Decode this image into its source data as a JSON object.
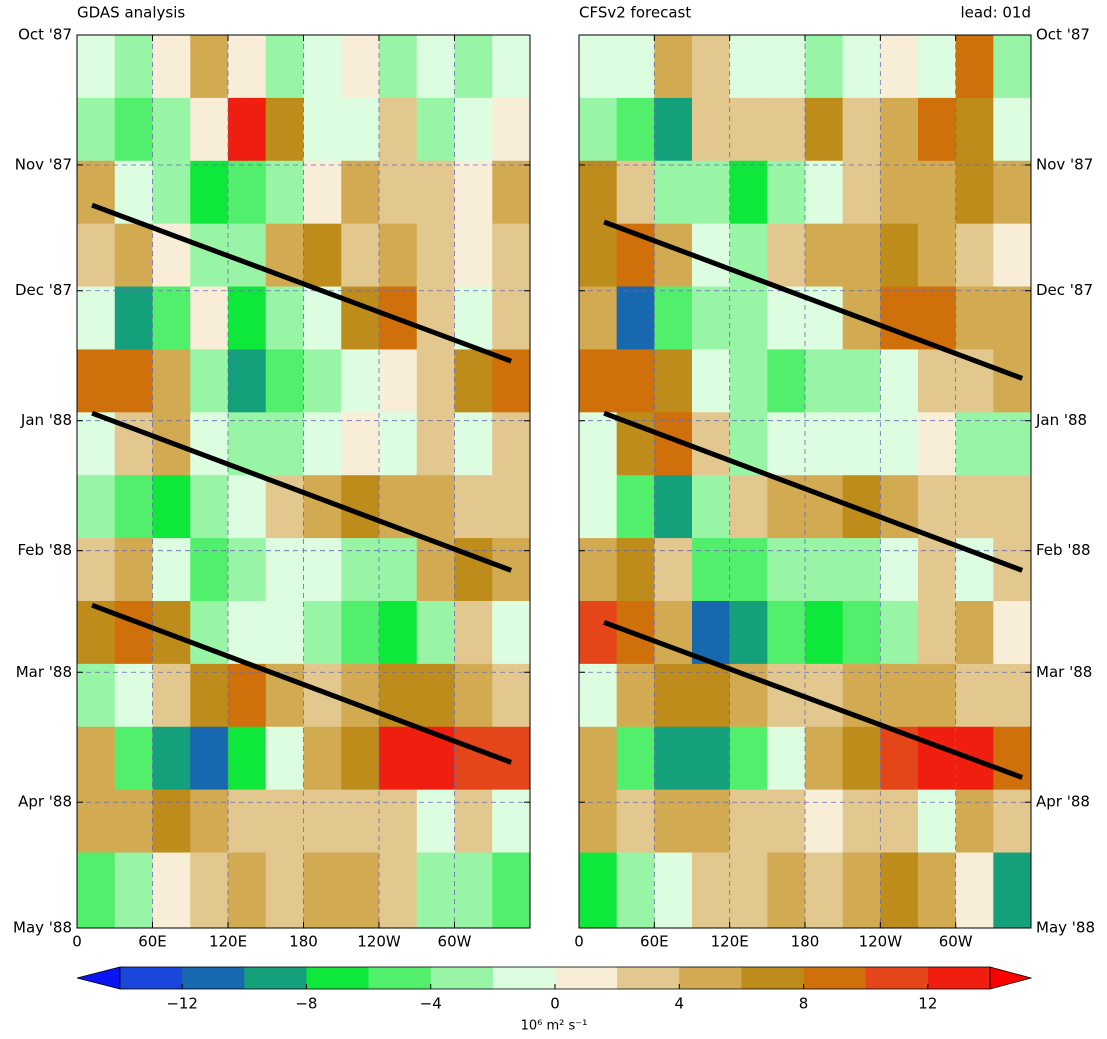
{
  "chart_data": [
    {
      "type": "hovmoller",
      "title": "GDAS analysis",
      "ytick_side": "left",
      "invert_y": true,
      "grid": true,
      "xlim": [
        0,
        360
      ],
      "xticks": [
        0,
        {
          "value": 60,
          "label": "60E"
        },
        {
          "value": 120,
          "label": "120E"
        },
        {
          "value": 180,
          "label": "180"
        },
        {
          "value": 240,
          "label": "120W"
        },
        {
          "value": 300,
          "label": "60W"
        }
      ],
      "ylim": [
        0,
        213
      ],
      "yticks": [
        {
          "value": 0,
          "label": "Oct '87"
        },
        {
          "value": 31,
          "label": "Nov '87"
        },
        {
          "value": 61,
          "label": "Dec '87"
        },
        {
          "value": 92,
          "label": "Jan '88"
        },
        {
          "value": 123,
          "label": "Feb '88"
        },
        {
          "value": 152,
          "label": "Mar '88"
        },
        {
          "value": 183,
          "label": "Apr '88"
        },
        {
          "value": 213,
          "label": "May '88"
        }
      ],
      "field": {
        "lon": [
          15,
          45,
          75,
          105,
          135,
          165,
          195,
          225,
          255,
          285,
          315,
          345
        ],
        "time": [
          7.5,
          22.5,
          37.5,
          52.5,
          67.5,
          82.5,
          97.5,
          112.5,
          127.5,
          142.5,
          157.5,
          172.5,
          187.5,
          202.5
        ],
        "values": [
          [
            -2,
            -3,
            1,
            5,
            1,
            -3,
            -2,
            1,
            -3,
            -2,
            -3,
            -2
          ],
          [
            -4,
            -6,
            -3,
            1,
            12,
            6,
            -1,
            -2,
            2,
            -3,
            -2,
            1
          ],
          [
            5,
            -2,
            -3,
            -8,
            -6,
            -4,
            1,
            4,
            3,
            2,
            1,
            5
          ],
          [
            3,
            5,
            1,
            -4,
            -3,
            5,
            6,
            3,
            4,
            3,
            1,
            2
          ],
          [
            -1,
            -10,
            -5,
            1,
            -8,
            -4,
            -2,
            6,
            8,
            2,
            -1,
            3
          ],
          [
            9,
            8,
            5,
            -3,
            -10,
            -6,
            -3,
            -2,
            1,
            3,
            6,
            8
          ],
          [
            -2,
            3,
            4,
            -1,
            -3,
            -4,
            -2,
            1,
            -2,
            2,
            -1,
            3
          ],
          [
            -3,
            -6,
            -8,
            -3,
            -2,
            3,
            4,
            6,
            5,
            5,
            3,
            2
          ],
          [
            3,
            4,
            -2,
            -5,
            -3,
            -2,
            -2,
            -4,
            -3,
            4,
            6,
            5
          ],
          [
            7,
            8,
            6,
            -3,
            -2,
            -2,
            -4,
            -5,
            -8,
            -3,
            2,
            -1
          ],
          [
            -3,
            -2,
            3,
            6,
            8,
            4,
            3,
            5,
            6,
            7,
            5,
            3
          ],
          [
            4,
            -6,
            -10,
            -12,
            -8,
            -2,
            5,
            7,
            12,
            13,
            10,
            11
          ],
          [
            5,
            4,
            6,
            4,
            3,
            2,
            3,
            3,
            2,
            -1,
            3,
            -1
          ],
          [
            -6,
            -3,
            1,
            3,
            5,
            3,
            5,
            4,
            3,
            -3,
            -4,
            -5
          ]
        ]
      },
      "lines": [
        {
          "lon": [
            12,
            345
          ],
          "time": [
            40.6,
            77.8
          ]
        },
        {
          "lon": [
            12,
            345
          ],
          "time": [
            90.2,
            127.7
          ]
        },
        {
          "lon": [
            12,
            345
          ],
          "time": [
            136,
            173.5
          ]
        }
      ]
    },
    {
      "type": "hovmoller",
      "title": "CFSv2 forecast",
      "annotation": "lead: 01d",
      "ytick_side": "right",
      "invert_y": true,
      "grid": true,
      "xlim": [
        0,
        360
      ],
      "xticks": [
        0,
        {
          "value": 60,
          "label": "60E"
        },
        {
          "value": 120,
          "label": "120E"
        },
        {
          "value": 180,
          "label": "180"
        },
        {
          "value": 240,
          "label": "120W"
        },
        {
          "value": 300,
          "label": "60W"
        }
      ],
      "ylim": [
        0,
        213
      ],
      "yticks": [
        {
          "value": 0,
          "label": "Oct '87"
        },
        {
          "value": 31,
          "label": "Nov '87"
        },
        {
          "value": 61,
          "label": "Dec '87"
        },
        {
          "value": 92,
          "label": "Jan '88"
        },
        {
          "value": 123,
          "label": "Feb '88"
        },
        {
          "value": 152,
          "label": "Mar '88"
        },
        {
          "value": 183,
          "label": "Apr '88"
        },
        {
          "value": 213,
          "label": "May '88"
        }
      ],
      "field": {
        "lon": [
          15,
          45,
          75,
          105,
          135,
          165,
          195,
          225,
          255,
          285,
          315,
          345
        ],
        "time": [
          7.5,
          22.5,
          37.5,
          52.5,
          67.5,
          82.5,
          97.5,
          112.5,
          127.5,
          142.5,
          157.5,
          172.5,
          187.5,
          202.5
        ],
        "values": [
          [
            -2,
            -1,
            5,
            3,
            -1,
            -1,
            -3,
            -2,
            1,
            -2,
            8,
            -3
          ],
          [
            -3,
            -6,
            -10,
            2,
            3,
            3,
            6,
            3,
            5,
            8,
            6,
            -1
          ],
          [
            6,
            3,
            -3,
            -4,
            -8,
            -3,
            -1,
            2,
            4,
            5,
            6,
            5
          ],
          [
            6,
            8,
            4,
            -1,
            -3,
            2,
            4,
            5,
            7,
            4,
            3,
            1
          ],
          [
            4,
            -12,
            -6,
            -3,
            -3,
            -2,
            -2,
            4,
            8,
            8,
            5,
            4
          ],
          [
            9,
            9,
            6,
            -1,
            -4,
            -5,
            -3,
            -3,
            -1,
            2,
            3,
            5
          ],
          [
            -1,
            6,
            8,
            2,
            -3,
            -2,
            -1,
            -2,
            -1,
            1,
            -4,
            -3
          ],
          [
            -2,
            -6,
            -9,
            -3,
            2,
            4,
            5,
            6,
            4,
            3,
            3,
            2
          ],
          [
            4,
            6,
            2,
            -6,
            -6,
            -4,
            -3,
            -3,
            -2,
            3,
            -1,
            2
          ],
          [
            10,
            8,
            5,
            -11,
            -9,
            -6,
            -8,
            -5,
            -4,
            2,
            5,
            1
          ],
          [
            -2,
            5,
            6,
            6,
            5,
            3,
            3,
            5,
            4,
            4,
            3,
            3
          ],
          [
            5,
            -6,
            -10,
            -10,
            -6,
            -1,
            4,
            6,
            11,
            13,
            12,
            8
          ],
          [
            4,
            3,
            5,
            4,
            2,
            3,
            1,
            3,
            2,
            -2,
            4,
            2
          ],
          [
            -7,
            -3,
            -1,
            2,
            3,
            4,
            3,
            4,
            6,
            5,
            1,
            -10
          ]
        ]
      },
      "lines": [
        {
          "lon": [
            20,
            353
          ],
          "time": [
            44.6,
            81.9
          ]
        },
        {
          "lon": [
            20,
            353
          ],
          "time": [
            90.2,
            127.7
          ]
        },
        {
          "lon": [
            20,
            353
          ],
          "time": [
            140.1,
            177.1
          ]
        }
      ]
    },
    {
      "type": "colorbar",
      "label": "10⁶ m² s⁻¹",
      "levels": [
        -14,
        -12,
        -10,
        -8,
        -6,
        -4,
        -2,
        0,
        2,
        4,
        6,
        8,
        10,
        12,
        14
      ],
      "colors": [
        "#0a14f5",
        "#1a46dc",
        "#1868b0",
        "#14a07a",
        "#0ee83a",
        "#52ef6c",
        "#98f5a6",
        "#dcfde0",
        "#f8eed8",
        "#e2c88e",
        "#d2aa52",
        "#be8c1a",
        "#d0700a",
        "#e4461a",
        "#f01e0e",
        "#ff0000"
      ],
      "ticks": [
        {
          "value": -12,
          "label": "−12"
        },
        {
          "value": -8,
          "label": "−8"
        },
        {
          "value": -4,
          "label": "−4"
        },
        0,
        4,
        8,
        12
      ]
    }
  ]
}
